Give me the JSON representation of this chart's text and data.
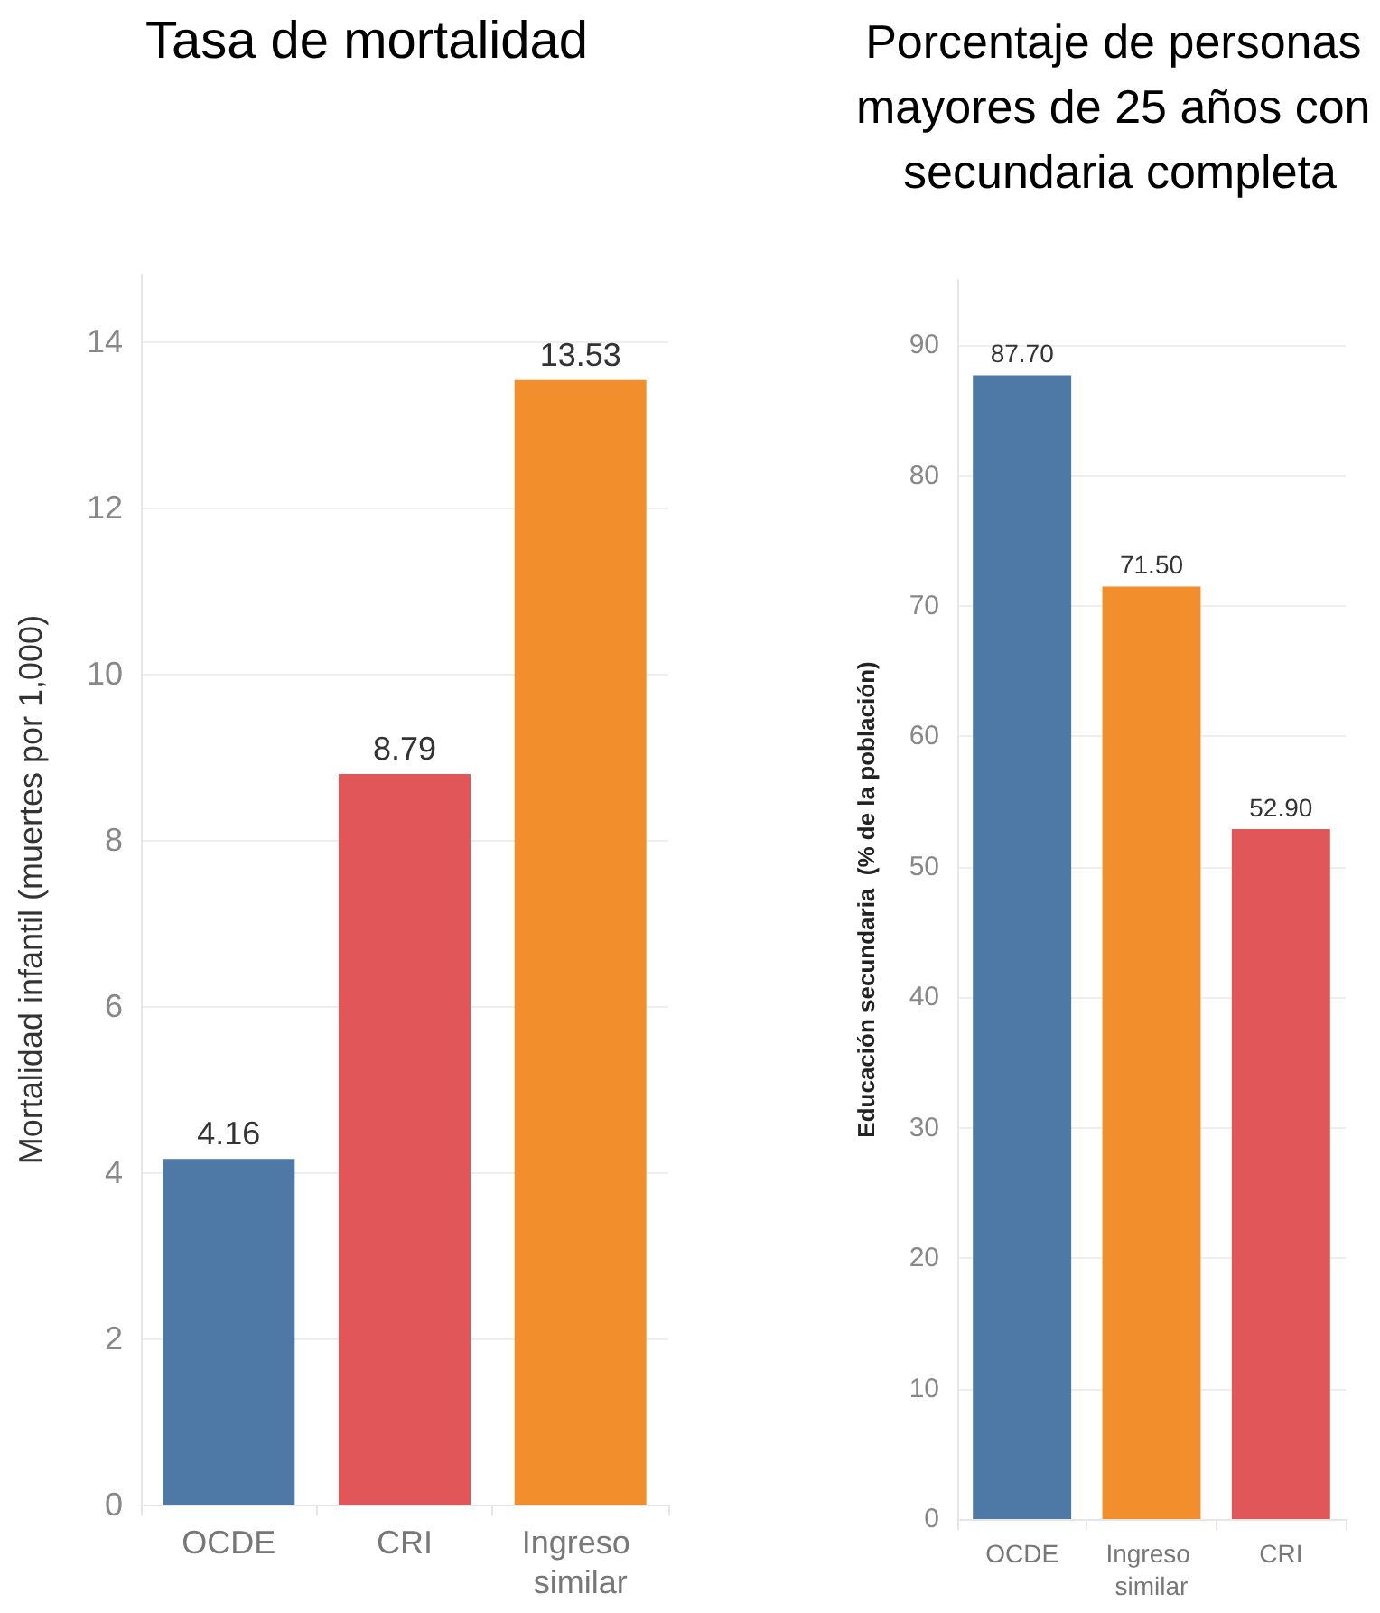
{
  "chart_data": [
    {
      "type": "bar",
      "title": "Tasa de mortalidad",
      "ylabel": "Mortalidad infantil (muertes por 1,000)",
      "categories": [
        "OCDE",
        "CRI",
        "Ingreso similar"
      ],
      "values": [
        4.16,
        8.79,
        13.53
      ],
      "colors": [
        "#4e79a7",
        "#e15759",
        "#f28e2b"
      ],
      "ylim": [
        0,
        14.8
      ],
      "yticks": [
        0,
        2,
        4,
        6,
        8,
        10,
        12,
        14
      ],
      "grid": "y",
      "data_labels": true
    },
    {
      "type": "bar",
      "title": "Porcentaje de personas mayores de 25 años con secundaria completa",
      "ylabel": "Educación secundaria  (% de la población)",
      "categories": [
        "OCDE",
        "Ingreso similar",
        "CRI"
      ],
      "values": [
        87.7,
        71.5,
        52.9
      ],
      "value_labels": [
        "87.70",
        "71.50",
        "52.90"
      ],
      "colors": [
        "#4e79a7",
        "#f28e2b",
        "#e15759"
      ],
      "ylim": [
        0,
        95
      ],
      "yticks": [
        0,
        10,
        20,
        30,
        40,
        50,
        60,
        70,
        80,
        90
      ],
      "grid": "y"
    }
  ]
}
